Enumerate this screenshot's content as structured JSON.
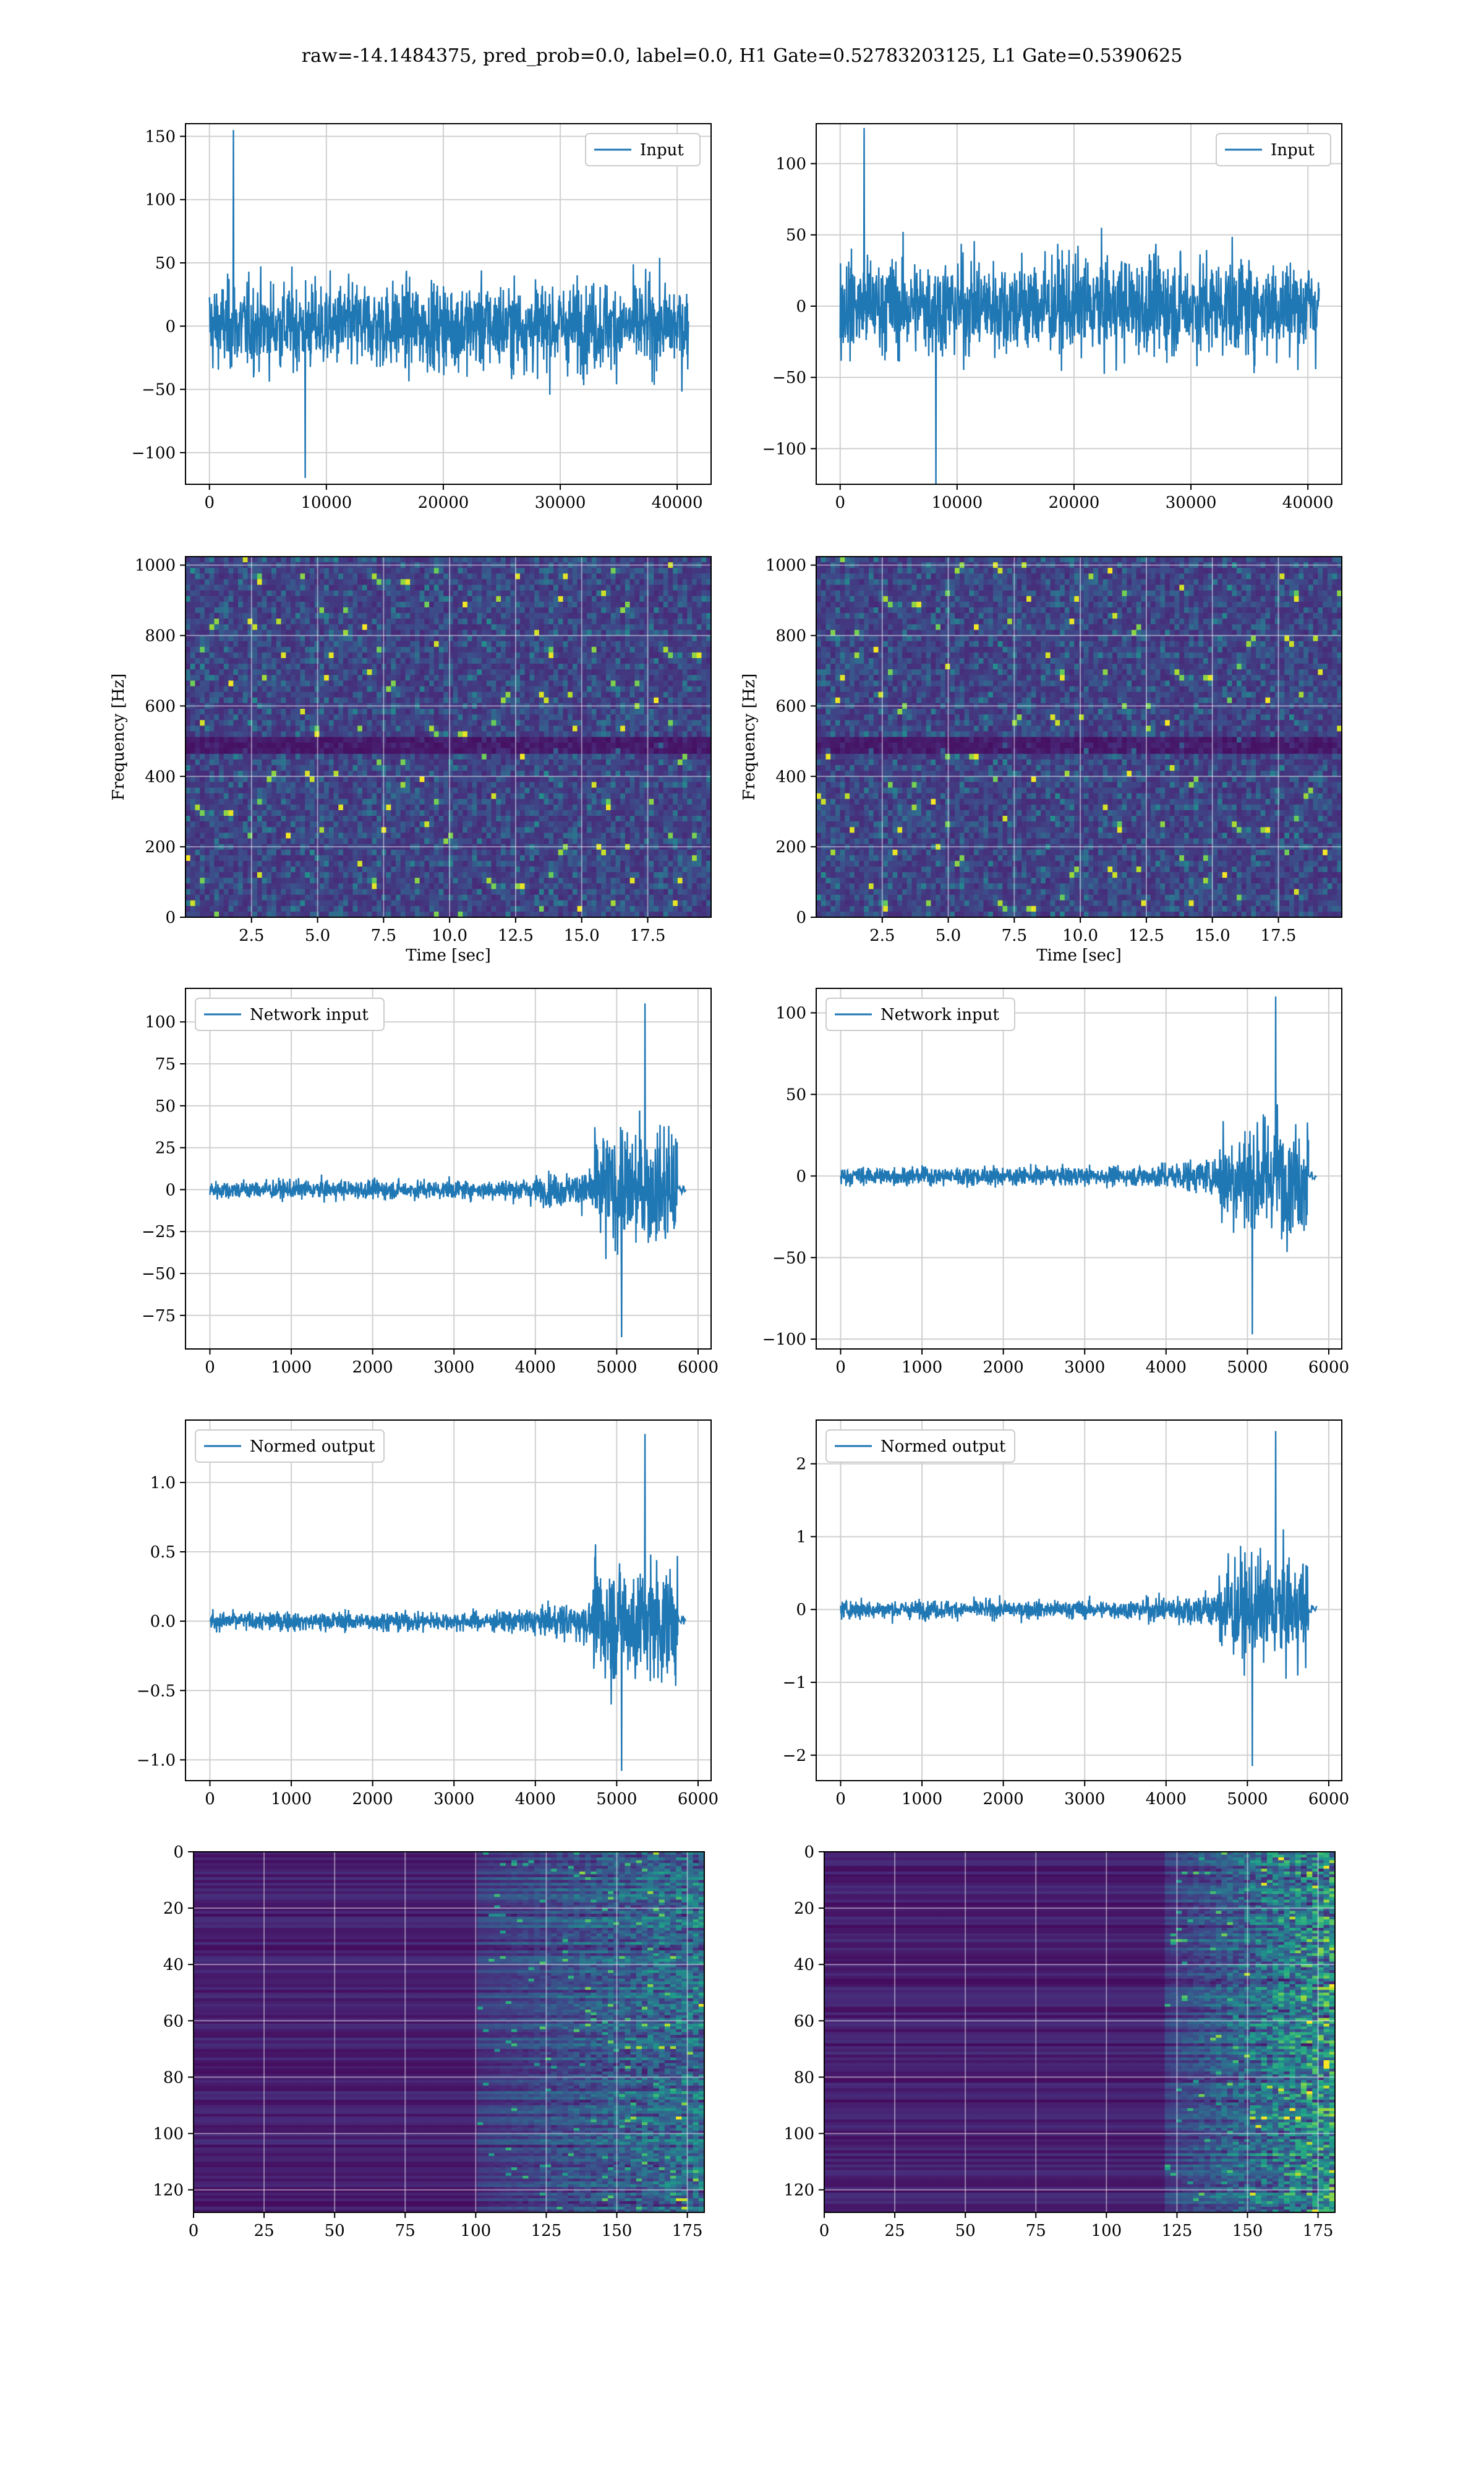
{
  "figure": {
    "title": "raw=-14.1484375, pred_prob=0.0, label=0.0, H1 Gate=0.52783203125, L1 Gate=0.5390625"
  },
  "colors": {
    "series": "#1f77b4",
    "grid": "#d0d0d0",
    "viridis": [
      "#440154",
      "#482878",
      "#3e4989",
      "#31688e",
      "#26828e",
      "#1f9e89",
      "#35b779",
      "#6ece58",
      "#b5de2b",
      "#fde725"
    ]
  },
  "chart_data": [
    {
      "type": "line",
      "panel": "input-h1",
      "legend": "Input",
      "xlim": [
        -2048,
        42900
      ],
      "ylim": [
        -125,
        160
      ],
      "xticks": [
        0,
        10000,
        20000,
        30000,
        40000
      ],
      "yticks": [
        -100,
        -50,
        0,
        50,
        100,
        150
      ],
      "signal": {
        "kind": "noise",
        "x_range": [
          0,
          40960
        ],
        "amp": 55,
        "peak": 155,
        "trough": -120
      }
    },
    {
      "type": "line",
      "panel": "input-l1",
      "legend": "Input",
      "xlim": [
        -2048,
        42900
      ],
      "ylim": [
        -125,
        128
      ],
      "xticks": [
        0,
        10000,
        20000,
        30000,
        40000
      ],
      "yticks": [
        -100,
        -50,
        0,
        50,
        100
      ],
      "signal": {
        "kind": "noise",
        "x_range": [
          0,
          40960
        ],
        "amp": 55,
        "peak": 125,
        "trough": -125
      }
    },
    {
      "type": "heatmap",
      "panel": "spec-h1",
      "xlabel": "Time [sec]",
      "ylabel": "Frequency [Hz]",
      "xlim": [
        0,
        19.9
      ],
      "ylim": [
        0,
        1024
      ],
      "xticks": [
        2.5,
        5.0,
        7.5,
        10.0,
        12.5,
        15.0,
        17.5
      ],
      "xtick_labels": [
        "2.5",
        "5.0",
        "7.5",
        "10.0",
        "12.5",
        "15.0",
        "17.5"
      ],
      "yticks": [
        0,
        200,
        400,
        600,
        800,
        1000
      ],
      "grid": true,
      "band_hz": 500
    },
    {
      "type": "heatmap",
      "panel": "spec-l1",
      "xlabel": "Time [sec]",
      "ylabel": "Frequency [Hz]",
      "xlim": [
        0,
        19.9
      ],
      "ylim": [
        0,
        1024
      ],
      "xticks": [
        2.5,
        5.0,
        7.5,
        10.0,
        12.5,
        15.0,
        17.5
      ],
      "xtick_labels": [
        "2.5",
        "5.0",
        "7.5",
        "10.0",
        "12.5",
        "15.0",
        "17.5"
      ],
      "yticks": [
        0,
        200,
        400,
        600,
        800,
        1000
      ],
      "grid": true,
      "band_hz": 500
    },
    {
      "type": "line",
      "panel": "network-h1",
      "legend": "Network input",
      "xlim": [
        -300,
        6160
      ],
      "ylim": [
        -95,
        120
      ],
      "xticks": [
        0,
        1000,
        2000,
        3000,
        4000,
        5000,
        6000
      ],
      "yticks": [
        -75,
        -50,
        -25,
        0,
        25,
        50,
        75,
        100
      ],
      "signal": {
        "kind": "ramp",
        "x_range": [
          0,
          5750
        ],
        "base_amp": 9,
        "ramp_start": 3500,
        "burst_start": 4700,
        "burst_amp": 55,
        "tail_to": 5850,
        "peak": 111,
        "trough": -88
      }
    },
    {
      "type": "line",
      "panel": "network-l1",
      "legend": "Network input",
      "xlim": [
        -300,
        6160
      ],
      "ylim": [
        -106,
        115
      ],
      "xticks": [
        0,
        1000,
        2000,
        3000,
        4000,
        5000,
        6000
      ],
      "yticks": [
        -100,
        -50,
        0,
        50,
        100
      ],
      "signal": {
        "kind": "ramp",
        "x_range": [
          0,
          5750
        ],
        "base_amp": 9,
        "ramp_start": 3500,
        "burst_start": 4650,
        "burst_amp": 55,
        "tail_to": 5850,
        "peak": 110,
        "trough": -97
      }
    },
    {
      "type": "line",
      "panel": "normed-h1",
      "legend": "Normed output",
      "xlim": [
        -300,
        6160
      ],
      "ylim": [
        -1.15,
        1.45
      ],
      "xticks": [
        0,
        1000,
        2000,
        3000,
        4000,
        5000,
        6000
      ],
      "yticks": [
        -1.0,
        -0.5,
        0.0,
        0.5,
        1.0
      ],
      "ytick_labels": [
        "−1.0",
        "−0.5",
        "0.0",
        "0.5",
        "1.0"
      ],
      "signal": {
        "kind": "ramp",
        "x_range": [
          0,
          5750
        ],
        "base_amp": 0.11,
        "ramp_start": 3500,
        "burst_start": 4700,
        "burst_amp": 0.7,
        "tail_to": 5850,
        "peak": 1.35,
        "trough": -1.08
      }
    },
    {
      "type": "line",
      "panel": "normed-l1",
      "legend": "Normed output",
      "xlim": [
        -300,
        6160
      ],
      "ylim": [
        -2.35,
        2.6
      ],
      "xticks": [
        0,
        1000,
        2000,
        3000,
        4000,
        5000,
        6000
      ],
      "yticks": [
        -2,
        -1,
        0,
        1,
        2
      ],
      "ytick_labels": [
        "−2",
        "−1",
        "0",
        "1",
        "2"
      ],
      "signal": {
        "kind": "ramp",
        "x_range": [
          0,
          5750
        ],
        "base_amp": 0.2,
        "ramp_start": 3500,
        "burst_start": 4650,
        "burst_amp": 1.1,
        "tail_to": 5850,
        "peak": 2.45,
        "trough": -2.15
      }
    },
    {
      "type": "heatmap",
      "panel": "feature-h1",
      "xlim": [
        0,
        181
      ],
      "ylim": [
        128,
        0
      ],
      "xticks": [
        0,
        25,
        50,
        75,
        100,
        125,
        150,
        175
      ],
      "yticks": [
        0,
        20,
        40,
        60,
        80,
        100,
        120
      ],
      "grid": true,
      "active_from": 100,
      "intensity": 0.45
    },
    {
      "type": "heatmap",
      "panel": "feature-l1",
      "xlim": [
        0,
        181
      ],
      "ylim": [
        128,
        0
      ],
      "xticks": [
        0,
        25,
        50,
        75,
        100,
        125,
        150,
        175
      ],
      "yticks": [
        0,
        20,
        40,
        60,
        80,
        100,
        120
      ],
      "grid": true,
      "active_from": 120,
      "intensity": 0.75
    }
  ]
}
